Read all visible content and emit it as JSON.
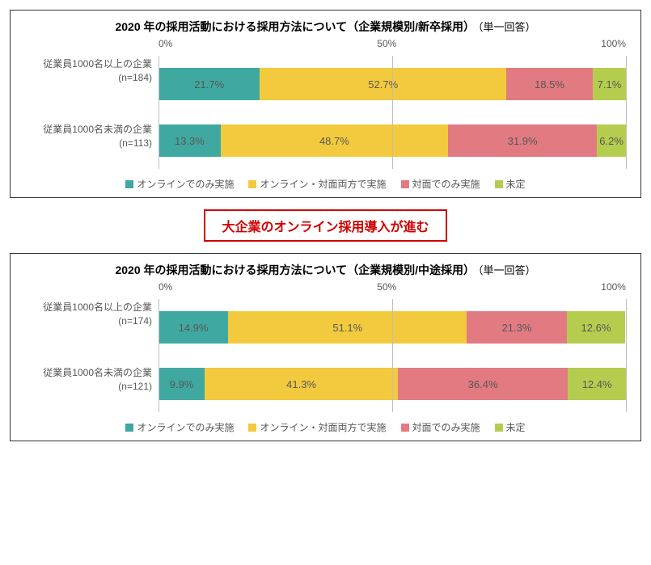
{
  "colors": {
    "online_only": "#3fa9a1",
    "both": "#f3ca3e",
    "in_person": "#e27a82",
    "undecided": "#b5cd4e",
    "gridline": "#bfbfbf",
    "text": "#575757",
    "border": "#333333",
    "callout": "#d00000"
  },
  "axis": {
    "ticks": [
      0,
      50,
      100
    ],
    "tick_labels": [
      "0%",
      "50%",
      "100%"
    ]
  },
  "legend": [
    {
      "key": "online_only",
      "label": "オンラインでのみ実施"
    },
    {
      "key": "both",
      "label": "オンライン・対面両方で実施"
    },
    {
      "key": "in_person",
      "label": "対面でのみ実施"
    },
    {
      "key": "undecided",
      "label": "未定"
    }
  ],
  "callout": "大企業のオンライン採用導入が進む",
  "charts": [
    {
      "title_main": "2020 年の採用活動における採用方法について（企業規模別/新卒採用）",
      "title_sub": "（単一回答）",
      "rows": [
        {
          "label_line1": "従業員1000名以上の企業",
          "label_line2": "(n=184)",
          "segments": [
            {
              "key": "online_only",
              "value": 21.7,
              "label": "21.7%"
            },
            {
              "key": "both",
              "value": 52.7,
              "label": "52.7%"
            },
            {
              "key": "in_person",
              "value": 18.5,
              "label": "18.5%"
            },
            {
              "key": "undecided",
              "value": 7.1,
              "label": "7.1%"
            }
          ]
        },
        {
          "label_line1": "従業員1000名未満の企業",
          "label_line2": "(n=113)",
          "segments": [
            {
              "key": "online_only",
              "value": 13.3,
              "label": "13.3%"
            },
            {
              "key": "both",
              "value": 48.7,
              "label": "48.7%"
            },
            {
              "key": "in_person",
              "value": 31.9,
              "label": "31.9%"
            },
            {
              "key": "undecided",
              "value": 6.2,
              "label": "6.2%"
            }
          ]
        }
      ]
    },
    {
      "title_main": "2020 年の採用活動における採用方法について（企業規模別/中途採用）",
      "title_sub": "（単一回答）",
      "rows": [
        {
          "label_line1": "従業員1000名以上の企業",
          "label_line2": "(n=174)",
          "segments": [
            {
              "key": "online_only",
              "value": 14.9,
              "label": "14.9%"
            },
            {
              "key": "both",
              "value": 51.1,
              "label": "51.1%"
            },
            {
              "key": "in_person",
              "value": 21.3,
              "label": "21.3%"
            },
            {
              "key": "undecided",
              "value": 12.6,
              "label": "12.6%"
            }
          ]
        },
        {
          "label_line1": "従業員1000名未満の企業",
          "label_line2": "(n=121)",
          "segments": [
            {
              "key": "online_only",
              "value": 9.9,
              "label": "9.9%"
            },
            {
              "key": "both",
              "value": 41.3,
              "label": "41.3%"
            },
            {
              "key": "in_person",
              "value": 36.4,
              "label": "36.4%"
            },
            {
              "key": "undecided",
              "value": 12.4,
              "label": "12.4%"
            }
          ]
        }
      ]
    }
  ]
}
